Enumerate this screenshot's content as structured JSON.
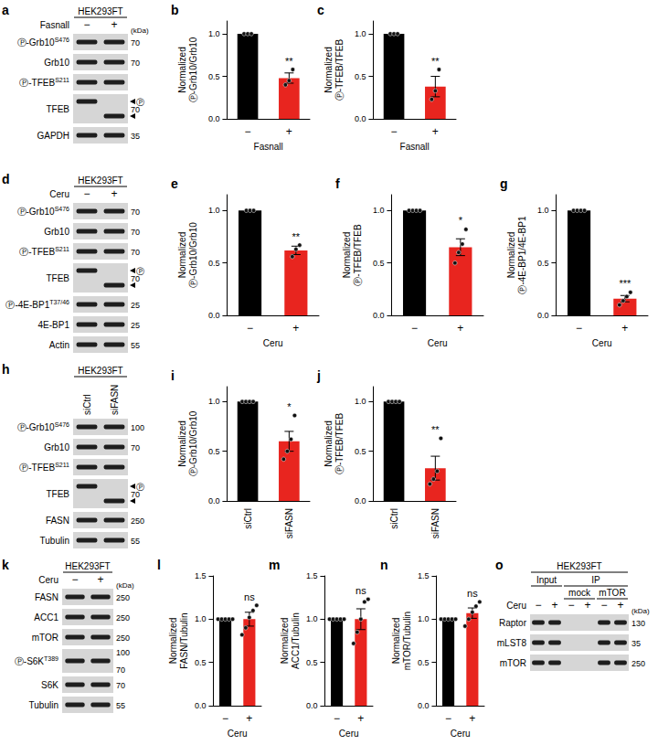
{
  "chart_data": [
    {
      "panel": "b",
      "type": "bar",
      "categories": [
        "−",
        "+"
      ],
      "x_label": "Fasnall",
      "y_label": "Normalized\nⓅ-Grb10/Grb10",
      "values": [
        1,
        0.48
      ],
      "errors": [
        0,
        0.06
      ],
      "points": [
        [
          1,
          1,
          1
        ],
        [
          0.4,
          0.45,
          0.58
        ]
      ],
      "significance": "**",
      "colors": [
        "#000000",
        "#e8251f"
      ],
      "ylim": [
        0,
        1.15
      ],
      "yticks": [
        {
          "value": 0,
          "label": "0.0"
        },
        {
          "value": 0.5,
          "label": "0.5"
        },
        {
          "value": 1,
          "label": "1.0"
        }
      ],
      "grid": false
    },
    {
      "panel": "c",
      "type": "bar",
      "categories": [
        "−",
        "+"
      ],
      "x_label": "Fasnall",
      "y_label": "Normalized\nⓅ-TFEB/TFEB",
      "values": [
        1,
        0.38
      ],
      "errors": [
        0,
        0.12
      ],
      "points": [
        [
          1,
          1,
          1
        ],
        [
          0.23,
          0.33,
          0.58
        ]
      ],
      "significance": "**",
      "colors": [
        "#000000",
        "#e8251f"
      ],
      "ylim": [
        0,
        1.15
      ],
      "yticks": [
        {
          "value": 0,
          "label": "0.0"
        },
        {
          "value": 0.5,
          "label": "0.5"
        },
        {
          "value": 1,
          "label": "1.0"
        }
      ],
      "grid": false
    },
    {
      "panel": "e",
      "type": "bar",
      "categories": [
        "−",
        "+"
      ],
      "x_label": "Ceru",
      "y_label": "Normalized\nⓅ-Grb10/Grb10",
      "values": [
        1,
        0.62
      ],
      "errors": [
        0,
        0.04
      ],
      "points": [
        [
          1,
          1,
          1
        ],
        [
          0.56,
          0.63,
          0.67
        ]
      ],
      "significance": "**",
      "colors": [
        "#000000",
        "#e8251f"
      ],
      "ylim": [
        0,
        1.15
      ],
      "yticks": [
        {
          "value": 0,
          "label": "0.0"
        },
        {
          "value": 0.5,
          "label": "0.5"
        },
        {
          "value": 1,
          "label": "1.0"
        }
      ],
      "grid": false
    },
    {
      "panel": "f",
      "type": "bar",
      "categories": [
        "−",
        "+"
      ],
      "x_label": "Ceru",
      "y_label": "Normalized\nⓅ-TFEB/TFEB",
      "values": [
        1,
        0.65
      ],
      "errors": [
        0,
        0.08
      ],
      "points": [
        [
          1,
          1,
          1,
          1
        ],
        [
          0.5,
          0.6,
          0.68,
          0.82
        ]
      ],
      "significance": "*",
      "colors": [
        "#000000",
        "#e8251f"
      ],
      "ylim": [
        0,
        1.15
      ],
      "yticks": [
        {
          "value": 0,
          "label": "0.0"
        },
        {
          "value": 0.5,
          "label": "0.5"
        },
        {
          "value": 1,
          "label": "1.0"
        }
      ],
      "grid": false
    },
    {
      "panel": "g",
      "type": "bar",
      "categories": [
        "−",
        "+"
      ],
      "x_label": "Ceru",
      "y_label": "Normalized\nⓅ-4E-BP1/4E-BP1",
      "values": [
        1,
        0.16
      ],
      "errors": [
        0,
        0.03
      ],
      "points": [
        [
          1,
          1,
          1,
          1
        ],
        [
          0.1,
          0.14,
          0.18,
          0.22
        ]
      ],
      "significance": "***",
      "colors": [
        "#000000",
        "#e8251f"
      ],
      "ylim": [
        0,
        1.15
      ],
      "yticks": [
        {
          "value": 0,
          "label": "0.0"
        },
        {
          "value": 0.5,
          "label": "0.5"
        },
        {
          "value": 1,
          "label": "1.0"
        }
      ],
      "grid": false
    },
    {
      "panel": "i",
      "type": "bar",
      "categories": [
        "siCtrl",
        "siFASN"
      ],
      "y_label": "Normalized\nⓅ-Grb10/Grb10",
      "values": [
        1,
        0.6
      ],
      "errors": [
        0,
        0.1
      ],
      "points": [
        [
          1,
          1,
          1,
          1
        ],
        [
          0.42,
          0.5,
          0.62,
          0.86
        ]
      ],
      "significance": "*",
      "colors": [
        "#000000",
        "#e8251f"
      ],
      "ylim": [
        0,
        1.15
      ],
      "yticks": [
        {
          "value": 0,
          "label": "0.0"
        },
        {
          "value": 0.5,
          "label": "0.5"
        },
        {
          "value": 1,
          "label": "1.0"
        }
      ],
      "grid": false
    },
    {
      "panel": "j",
      "type": "bar",
      "categories": [
        "siCtrl",
        "siFASN"
      ],
      "y_label": "Normalized\nⓅ-TFEB/TFEB",
      "values": [
        1,
        0.33
      ],
      "errors": [
        0,
        0.12
      ],
      "points": [
        [
          1,
          1,
          1,
          1
        ],
        [
          0.17,
          0.22,
          0.3,
          0.63
        ]
      ],
      "significance": "**",
      "colors": [
        "#000000",
        "#e8251f"
      ],
      "ylim": [
        0,
        1.15
      ],
      "yticks": [
        {
          "value": 0,
          "label": "0.0"
        },
        {
          "value": 0.5,
          "label": "0.5"
        },
        {
          "value": 1,
          "label": "1.0"
        }
      ],
      "grid": false
    },
    {
      "panel": "l",
      "type": "bar",
      "categories": [
        "−",
        "+"
      ],
      "x_label": "Ceru",
      "y_label": "Normalized\nFASN/Tubulin",
      "values": [
        1,
        1.0
      ],
      "errors": [
        0,
        0.08
      ],
      "points": [
        [
          1,
          1,
          1,
          1,
          1
        ],
        [
          0.82,
          0.9,
          1.02,
          1.1,
          1.16
        ]
      ],
      "significance": "ns",
      "colors": [
        "#000000",
        "#e8251f"
      ],
      "ylim": [
        0,
        1.5
      ],
      "yticks": [
        {
          "value": 0,
          "label": "0.0"
        },
        {
          "value": 0.5,
          "label": "0.5"
        },
        {
          "value": 1,
          "label": "1.0"
        },
        {
          "value": 1.5,
          "label": "1.5"
        }
      ],
      "grid": false
    },
    {
      "panel": "m",
      "type": "bar",
      "categories": [
        "−",
        "+"
      ],
      "x_label": "Ceru",
      "y_label": "Normalized\nACC1/Tubulin",
      "values": [
        1,
        1.0
      ],
      "errors": [
        0,
        0.12
      ],
      "points": [
        [
          1,
          1,
          1,
          1,
          1
        ],
        [
          0.72,
          0.85,
          1.0,
          1.2,
          1.23
        ]
      ],
      "significance": "ns",
      "colors": [
        "#000000",
        "#e8251f"
      ],
      "ylim": [
        0,
        1.5
      ],
      "yticks": [
        {
          "value": 0,
          "label": "0.0"
        },
        {
          "value": 0.5,
          "label": "0.5"
        },
        {
          "value": 1,
          "label": "1.0"
        },
        {
          "value": 1.5,
          "label": "1.5"
        }
      ],
      "grid": false
    },
    {
      "panel": "n",
      "type": "bar",
      "categories": [
        "−",
        "+"
      ],
      "x_label": "Ceru",
      "y_label": "Normalized\nmTOR/Tubulin",
      "values": [
        1,
        1.07
      ],
      "errors": [
        0,
        0.06
      ],
      "points": [
        [
          1,
          1,
          1,
          1,
          1
        ],
        [
          0.92,
          1.0,
          1.08,
          1.15,
          1.2
        ]
      ],
      "significance": "ns",
      "colors": [
        "#000000",
        "#e8251f"
      ],
      "ylim": [
        0,
        1.5
      ],
      "yticks": [
        {
          "value": 0,
          "label": "0.0"
        },
        {
          "value": 0.5,
          "label": "0.5"
        },
        {
          "value": 1,
          "label": "1.0"
        },
        {
          "value": 1.5,
          "label": "1.5"
        }
      ],
      "grid": false
    }
  ],
  "blots": [
    {
      "panel": "a",
      "cell_line": "HEK293FT",
      "condition": "Fasnall",
      "lanes": [
        "−",
        "+"
      ],
      "unit": "(kDa)",
      "rows": [
        {
          "label": "Ⓟ-Grb10",
          "site": "S476",
          "mw": [
            70
          ]
        },
        {
          "label": "Grb10",
          "mw": [
            70
          ]
        },
        {
          "label": "Ⓟ-TFEB",
          "site": "S211",
          "mw": []
        },
        {
          "label": "TFEB",
          "marker": "Ⓟ",
          "mw": [
            70
          ]
        },
        {
          "label": "GAPDH",
          "mw": [
            35
          ]
        }
      ]
    },
    {
      "panel": "d",
      "cell_line": "HEK293FT",
      "condition": "Ceru",
      "lanes": [
        "−",
        "+"
      ],
      "rows": [
        {
          "label": "Ⓟ-Grb10",
          "site": "S476",
          "mw": [
            70
          ]
        },
        {
          "label": "Grb10",
          "mw": [
            70
          ]
        },
        {
          "label": "Ⓟ-TFEB",
          "site": "S211",
          "mw": [
            70
          ]
        },
        {
          "label": "TFEB",
          "marker": "Ⓟ",
          "mw": [
            70
          ]
        },
        {
          "label": "Ⓟ-4E-BP1",
          "site": "T37/46",
          "mw": [
            25
          ]
        },
        {
          "label": "4E-BP1",
          "mw": [
            25
          ]
        },
        {
          "label": "Actin",
          "mw": [
            55
          ]
        }
      ]
    },
    {
      "panel": "h",
      "cell_line": "HEK293FT",
      "lanes": [
        "siCtrl",
        "siFASN"
      ],
      "rows": [
        {
          "label": "Ⓟ-Grb10",
          "site": "S476",
          "mw": [
            100
          ]
        },
        {
          "label": "Grb10",
          "mw": [
            70
          ]
        },
        {
          "label": "Ⓟ-TFEB",
          "site": "S211",
          "mw": []
        },
        {
          "label": "TFEB",
          "marker": "Ⓟ",
          "mw": [
            70
          ]
        },
        {
          "label": "FASN",
          "mw": [
            250
          ]
        },
        {
          "label": "Tubulin",
          "mw": [
            55
          ]
        }
      ]
    },
    {
      "panel": "k",
      "cell_line": "HEK293FT",
      "condition": "Ceru",
      "lanes": [
        "−",
        "+"
      ],
      "unit": "(kDa)",
      "rows": [
        {
          "label": "FASN",
          "mw": [
            250
          ]
        },
        {
          "label": "ACC1",
          "mw": [
            250
          ]
        },
        {
          "label": "mTOR",
          "mw": [
            250
          ]
        },
        {
          "label": "Ⓟ-S6K",
          "site": "T389",
          "mw": [
            100,
            70
          ]
        },
        {
          "label": "S6K",
          "mw": [
            70
          ]
        },
        {
          "label": "Tubulin",
          "mw": [
            55
          ]
        }
      ]
    },
    {
      "panel": "o",
      "cell_line": "HEK293FT",
      "condition": "Ceru",
      "lanes": [
        "−",
        "+",
        "−",
        "+",
        "−",
        "+"
      ],
      "unit": "(kDa)",
      "groups": [
        {
          "label": "Input",
          "lanes": [
            0,
            1
          ]
        },
        {
          "label": "IP",
          "lanes": [
            2,
            5
          ]
        }
      ],
      "subgroups": [
        {
          "label": "mock",
          "lanes": [
            2,
            3
          ]
        },
        {
          "label": "mTOR",
          "lanes": [
            4,
            5
          ]
        }
      ],
      "rows": [
        {
          "label": "Raptor",
          "mw": [
            130
          ],
          "bands": [
            true,
            true,
            false,
            false,
            true,
            true
          ]
        },
        {
          "label": "mLST8",
          "mw": [
            35
          ],
          "bands": [
            true,
            true,
            false,
            false,
            true,
            true
          ]
        },
        {
          "label": "mTOR",
          "mw": [
            250
          ],
          "bands": [
            true,
            true,
            false,
            false,
            true,
            true
          ]
        }
      ]
    }
  ]
}
